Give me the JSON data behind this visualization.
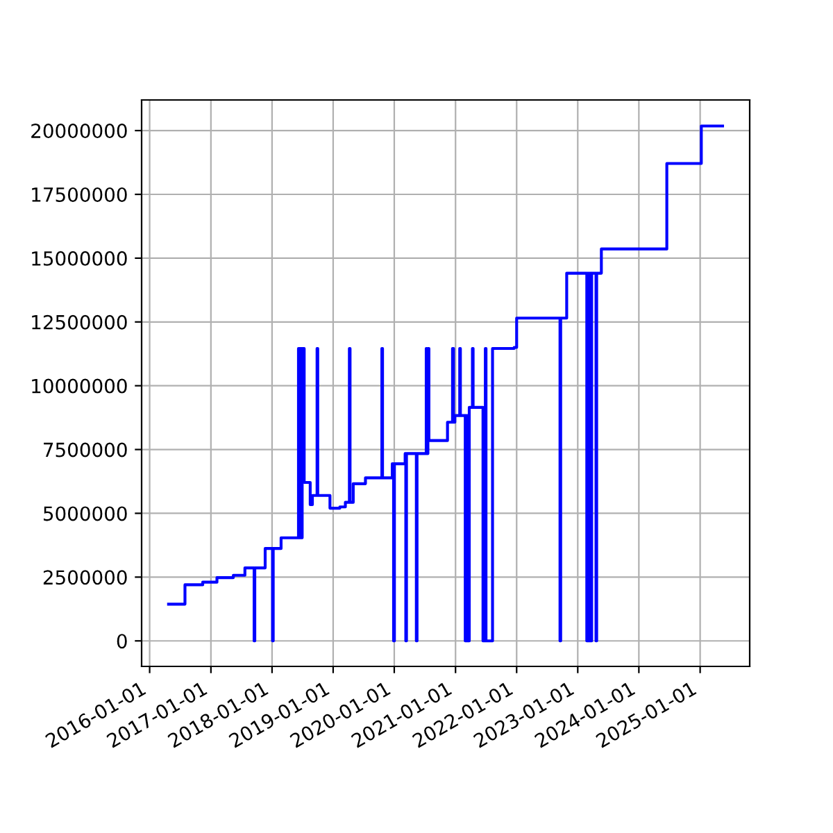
{
  "chart_data": {
    "type": "step",
    "x": [
      "2016-04-23",
      "2016-07-30",
      "2016-11-13",
      "2017-02-06",
      "2017-05-15",
      "2017-07-23",
      "2017-09-16",
      "2017-09-20",
      "2017-11-21",
      "2018-01-04",
      "2018-01-08",
      "2018-02-24",
      "2018-06-08",
      "2018-06-12",
      "2018-06-18",
      "2018-06-24",
      "2018-06-30",
      "2018-07-12",
      "2018-08-17",
      "2018-08-30",
      "2018-09-27",
      "2018-10-01",
      "2018-12-13",
      "2019-02-10",
      "2019-03-15",
      "2019-04-08",
      "2019-04-12",
      "2019-05-01",
      "2019-07-13",
      "2019-10-19",
      "2019-10-23",
      "2019-12-20",
      "2019-12-28",
      "2020-01-02",
      "2020-03-06",
      "2020-03-10",
      "2020-03-14",
      "2020-05-12",
      "2020-05-16",
      "2020-07-10",
      "2020-07-14",
      "2020-07-20",
      "2020-07-26",
      "2020-11-14",
      "2020-12-14",
      "2020-12-20",
      "2020-12-28",
      "2021-01-26",
      "2021-01-30",
      "2021-02-28",
      "2021-03-04",
      "2021-03-08",
      "2021-03-14",
      "2021-03-18",
      "2021-03-24",
      "2021-04-12",
      "2021-04-16",
      "2021-06-14",
      "2021-06-28",
      "2021-07-02",
      "2021-08-10",
      "2021-12-17",
      "2022-01-01",
      "2022-09-17",
      "2022-09-21",
      "2022-10-27",
      "2023-02-24",
      "2023-02-28",
      "2023-03-04",
      "2023-03-08",
      "2023-03-12",
      "2023-03-16",
      "2023-03-22",
      "2023-03-25",
      "2023-04-20",
      "2023-04-24",
      "2023-05-22",
      "2024-06-16",
      "2025-01-08",
      "2025-05-15"
    ],
    "series": [
      {
        "color": "#0000ff",
        "values": [
          1440000,
          2200000,
          2300000,
          2480000,
          2570000,
          2860000,
          0,
          2860000,
          3620000,
          0,
          3620000,
          4040000,
          11460000,
          4040000,
          11460000,
          4040000,
          11460000,
          6210000,
          5340000,
          5700000,
          11460000,
          5700000,
          5200000,
          5250000,
          5430000,
          11460000,
          5430000,
          6160000,
          6390000,
          11460000,
          6390000,
          6940000,
          0,
          6940000,
          7340000,
          0,
          7340000,
          0,
          7340000,
          11460000,
          7340000,
          11460000,
          7850000,
          8570000,
          11460000,
          8570000,
          8830000,
          11460000,
          8830000,
          0,
          8830000,
          0,
          8830000,
          0,
          9150000,
          11460000,
          9150000,
          0,
          11460000,
          0,
          11460000,
          11500000,
          12650000,
          0,
          12650000,
          14410000,
          0,
          14410000,
          0,
          14410000,
          0,
          14410000,
          0,
          14410000,
          0,
          14410000,
          15360000,
          18710000,
          20180000,
          20180000
        ]
      }
    ],
    "xlim": [
      "2015-11-14",
      "2025-10-24"
    ],
    "xticks": [
      "2016-01-01",
      "2017-01-01",
      "2018-01-01",
      "2019-01-01",
      "2020-01-01",
      "2021-01-01",
      "2022-01-01",
      "2023-01-01",
      "2024-01-01",
      "2025-01-01"
    ],
    "ylim": [
      -1000000,
      21200000
    ],
    "yticks": [
      0,
      2500000,
      5000000,
      7500000,
      10000000,
      12500000,
      15000000,
      17500000,
      20000000
    ],
    "grid": true,
    "line_style": "solid",
    "marker": "none"
  }
}
